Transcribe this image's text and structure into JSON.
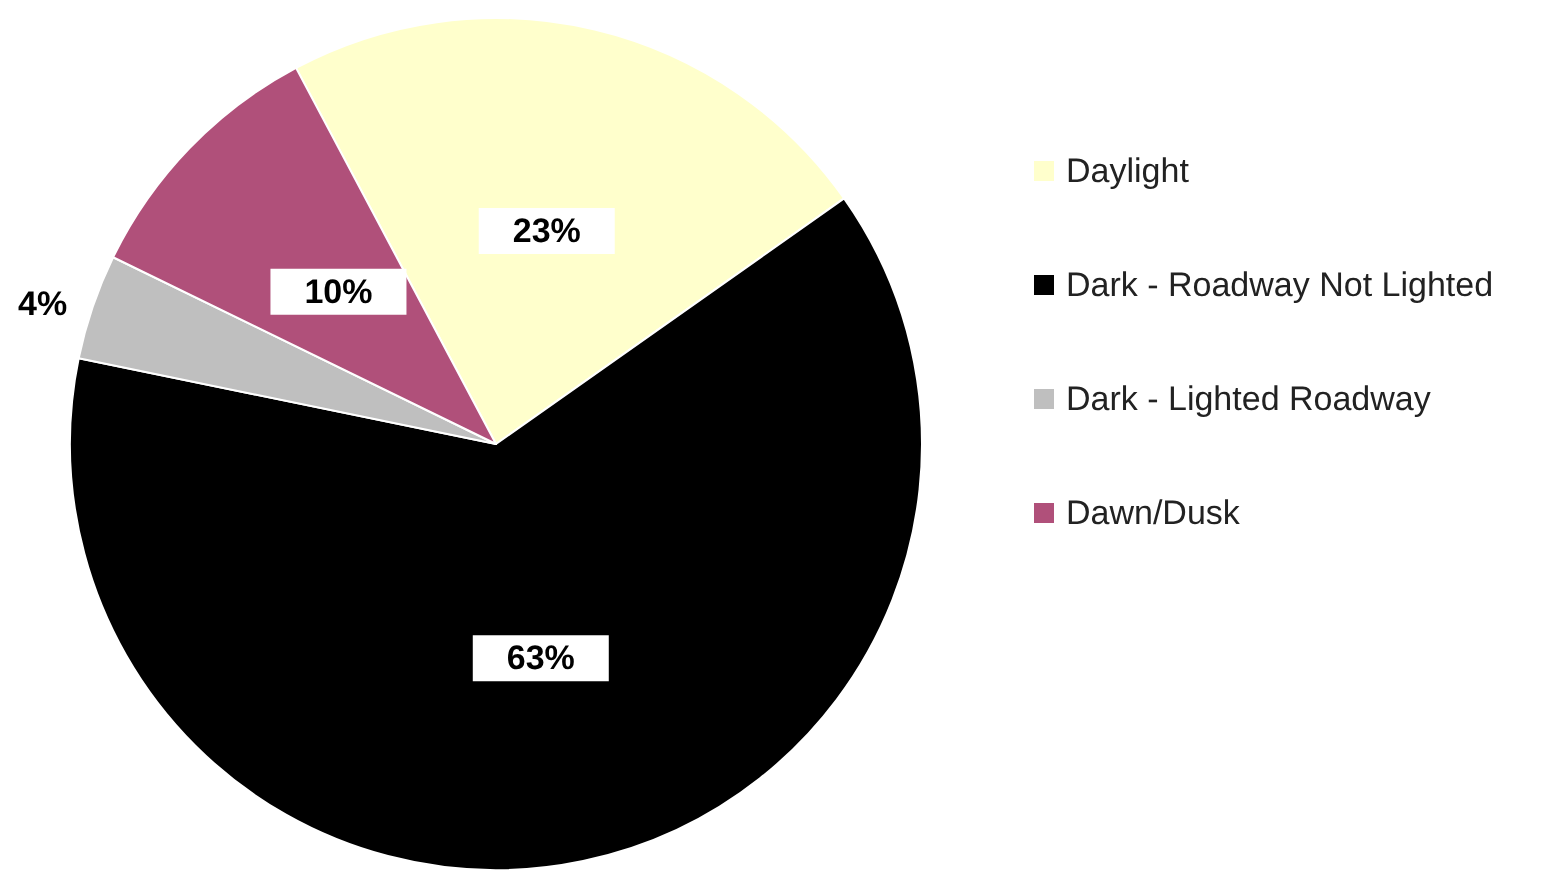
{
  "chart_data": {
    "type": "pie",
    "categories": [
      "Daylight",
      "Dark - Roadway Not Lighted",
      "Dark - Lighted Roadway",
      "Dawn/Dusk"
    ],
    "values": [
      23,
      63,
      4,
      10
    ],
    "colors": [
      "#ffffcc",
      "#000000",
      "#bfbfbf",
      "#b0507a"
    ],
    "value_labels": [
      "23%",
      "63%",
      "4%",
      "10%"
    ],
    "legend": "right"
  }
}
